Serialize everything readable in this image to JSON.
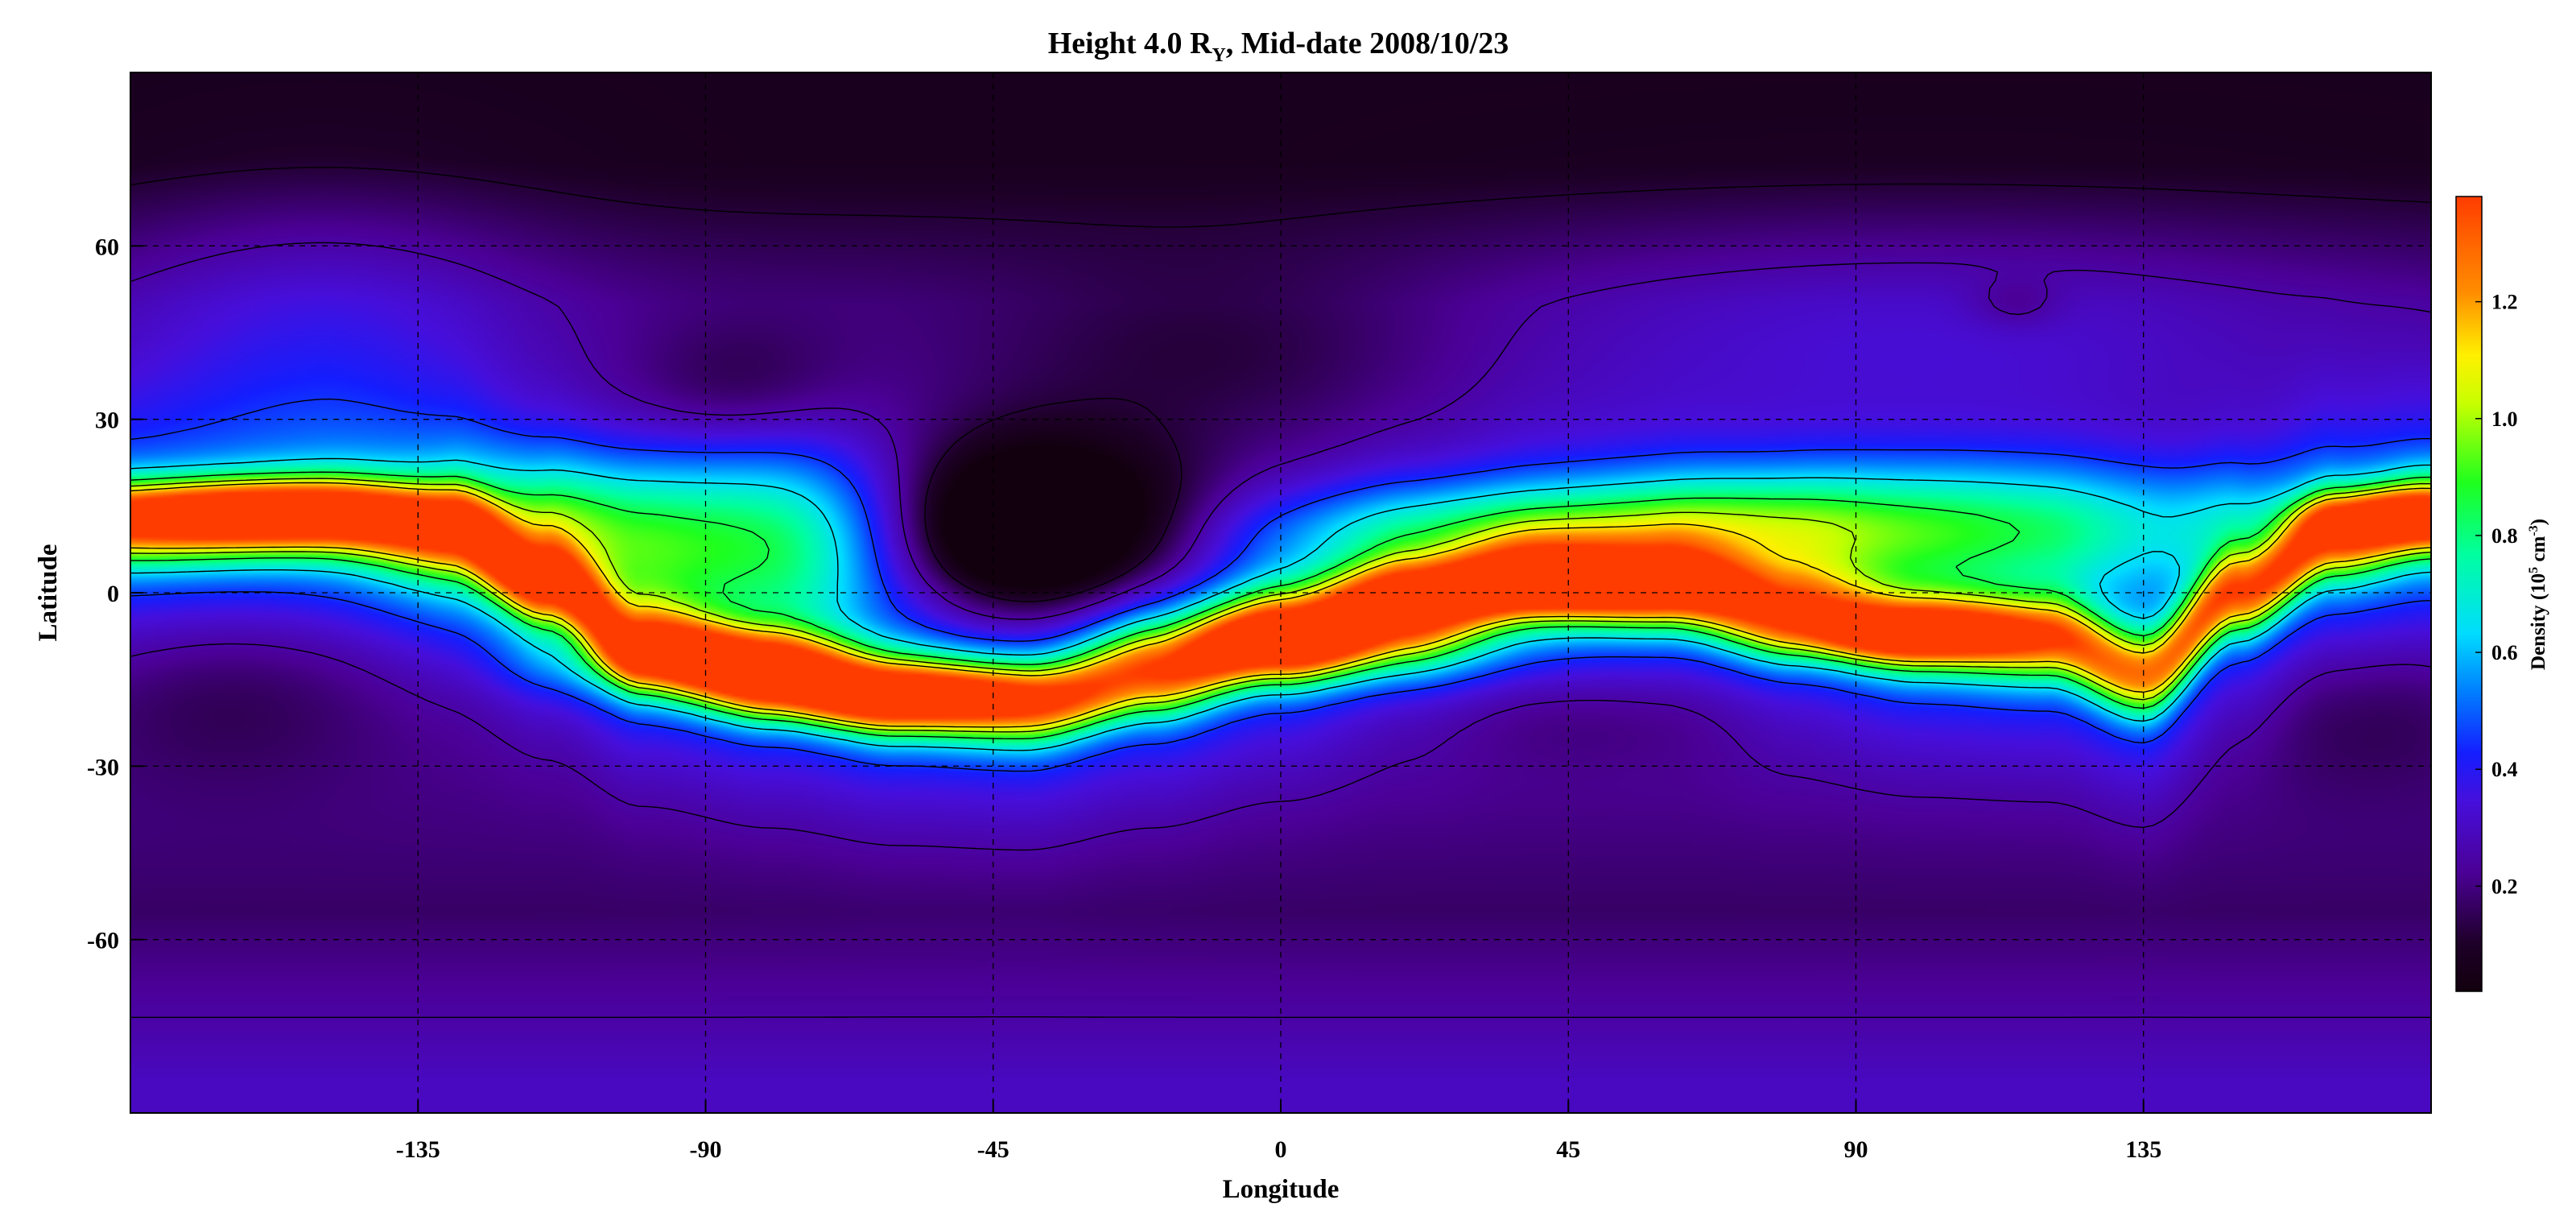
{
  "chart_data": {
    "type": "heatmap",
    "title": "Height 4.0 R",
    "title_subscript": "Y",
    "title_suffix": ", Mid-date 2008/10/23",
    "xlabel": "Longitude",
    "ylabel": "Latitude",
    "xlim": [
      -180,
      180
    ],
    "ylim": [
      -90,
      90
    ],
    "x_ticks": [
      -135,
      -90,
      -45,
      0,
      45,
      90,
      135
    ],
    "y_ticks": [
      -60,
      -30,
      0,
      30,
      60
    ],
    "x_tick_labels": [
      "-135",
      "-90",
      "-45",
      "0",
      "45",
      "90",
      "135"
    ],
    "y_tick_labels": [
      "-60",
      "-30",
      "0",
      "30",
      "60"
    ],
    "grid": true,
    "grid_style": "dashed",
    "colormap": "rainbow",
    "colorbar": {
      "label_prefix": "Density (10",
      "label_exp1": "5",
      "label_mid": " cm",
      "label_exp2": "-3",
      "label_suffix": ")",
      "range": [
        0.02,
        1.38
      ],
      "ticks": [
        0.2,
        0.4,
        0.6,
        0.8,
        1.0,
        1.2
      ],
      "tick_labels": [
        "0.2",
        "0.4",
        "0.6",
        "0.8",
        "1.0",
        "1.2"
      ]
    },
    "contour_levels": [
      0.12,
      0.25,
      0.45,
      0.65,
      0.85,
      1.0,
      1.12
    ],
    "field": {
      "background": {
        "high_north_lat": 75,
        "high_north_value": 0.07,
        "north_value": 0.2,
        "equator_value": 0.28,
        "south_value": 0.17,
        "high_south_value": 0.3
      },
      "neutral_sheet_curve": [
        [
          -180,
          12
        ],
        [
          -150,
          13
        ],
        [
          -130,
          11
        ],
        [
          -115,
          2
        ],
        [
          -100,
          -9
        ],
        [
          -80,
          -14
        ],
        [
          -60,
          -18
        ],
        [
          -40,
          -19
        ],
        [
          -20,
          -14
        ],
        [
          0,
          -8
        ],
        [
          20,
          -2
        ],
        [
          40,
          2
        ],
        [
          60,
          1
        ],
        [
          80,
          -4
        ],
        [
          100,
          -7
        ],
        [
          120,
          -8
        ],
        [
          135,
          -14
        ],
        [
          150,
          0
        ],
        [
          165,
          10
        ],
        [
          180,
          13
        ]
      ],
      "neutral_sheet_width": 5,
      "streamer_peak_value": 1.05,
      "blobs": [
        {
          "lon": -160,
          "lat": 14,
          "sx": 20,
          "sy": 3.5,
          "amp": 0.55
        },
        {
          "lon": -90,
          "lat": -12,
          "sx": 15,
          "sy": 4,
          "amp": 0.5
        },
        {
          "lon": -60,
          "lat": -18,
          "sx": 18,
          "sy": 3.5,
          "amp": 0.5
        },
        {
          "lon": 5,
          "lat": -8,
          "sx": 18,
          "sy": 5,
          "amp": 0.6
        },
        {
          "lon": 40,
          "lat": 1,
          "sx": 22,
          "sy": 3.5,
          "amp": 0.45
        },
        {
          "lon": 100,
          "lat": -7,
          "sx": 12,
          "sy": 3,
          "amp": 0.55
        },
        {
          "lon": 175,
          "lat": 13,
          "sx": 10,
          "sy": 3,
          "amp": 0.5
        },
        {
          "lon": -110,
          "lat": 10,
          "sx": 18,
          "sy": 10,
          "amp": 0.5
        },
        {
          "lon": -75,
          "lat": 10,
          "sx": 15,
          "sy": 12,
          "amp": 0.45
        },
        {
          "lon": 110,
          "lat": 12,
          "sx": 35,
          "sy": 8,
          "amp": 0.45
        },
        {
          "lon": 30,
          "lat": 10,
          "sx": 25,
          "sy": 6,
          "amp": 0.35
        },
        {
          "lon": 70,
          "lat": 10,
          "sx": 20,
          "sy": 7,
          "amp": 0.3
        },
        {
          "lon": -150,
          "lat": 45,
          "sx": 25,
          "sy": 18,
          "amp": 0.15
        },
        {
          "lon": 100,
          "lat": 45,
          "sx": 50,
          "sy": 15,
          "amp": 0.12
        },
        {
          "lon": -40,
          "lat": 10,
          "sx": 18,
          "sy": 11,
          "amp": -0.55
        },
        {
          "lon": -85,
          "lat": 35,
          "sx": 12,
          "sy": 8,
          "amp": -0.1
        },
        {
          "lon": -10,
          "lat": 40,
          "sx": 25,
          "sy": 12,
          "amp": -0.1
        },
        {
          "lon": 50,
          "lat": -20,
          "sx": 25,
          "sy": 7,
          "amp": -0.1
        },
        {
          "lon": -165,
          "lat": -15,
          "sx": 20,
          "sy": 12,
          "amp": -0.12
        },
        {
          "lon": 170,
          "lat": -20,
          "sx": 15,
          "sy": 10,
          "amp": -0.1
        },
        {
          "lon": 115,
          "lat": 50,
          "sx": 5,
          "sy": 3,
          "amp": -0.08
        }
      ]
    }
  }
}
